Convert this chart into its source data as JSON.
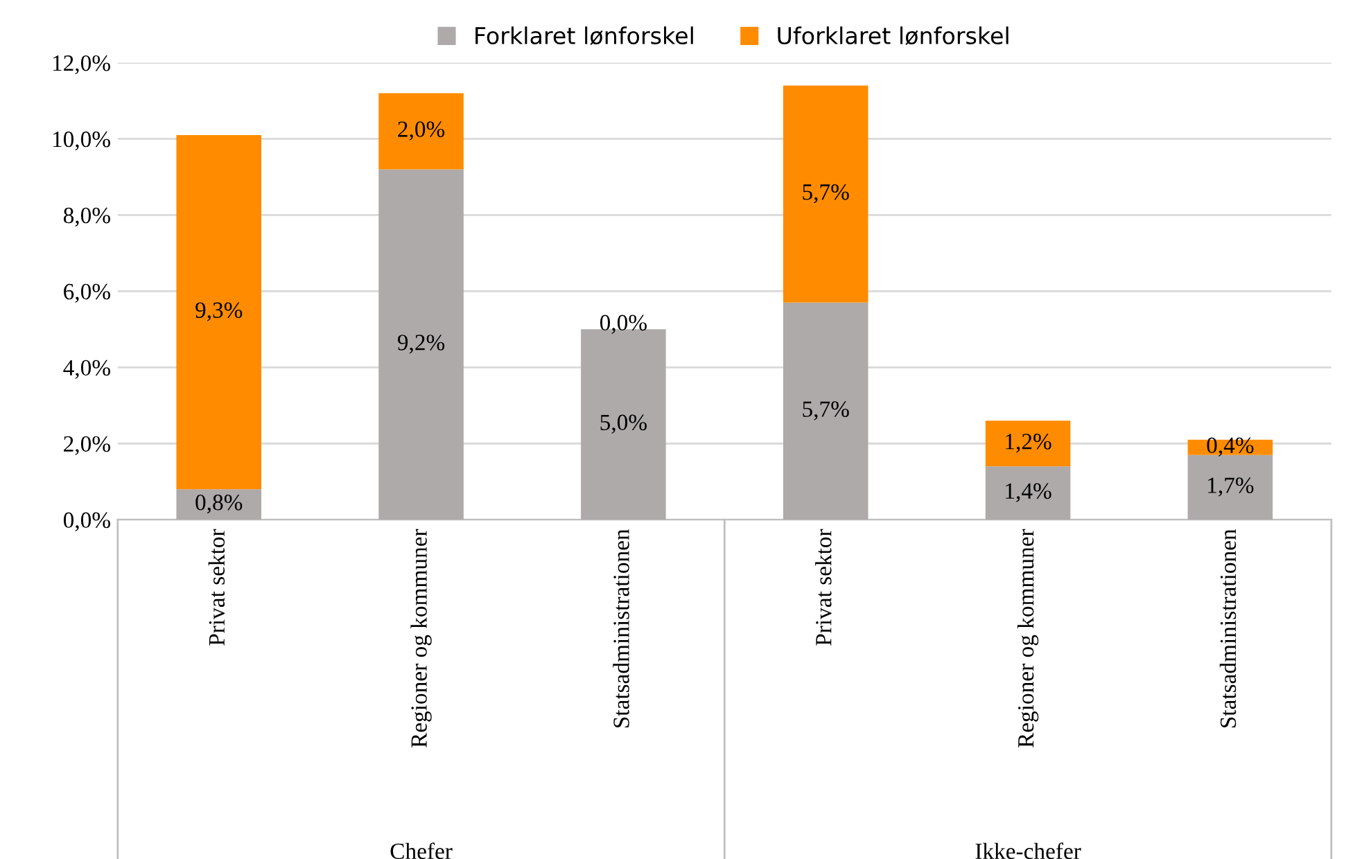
{
  "chart_data": {
    "type": "bar",
    "stacked": true,
    "categories": [
      "Privat sektor",
      "Regioner og kommuner",
      "Statsadministrationen",
      "Privat sektor",
      "Regioner og kommuner",
      "Statsadministrationen"
    ],
    "series": [
      {
        "name": "Forklaret lønforskel",
        "color": "#aeaaaa",
        "values": [
          0.8,
          9.2,
          5.0,
          5.7,
          1.4,
          1.7
        ],
        "value_labels": [
          "0,8%",
          "9,2%",
          "5,0%",
          "5,7%",
          "1,4%",
          "1,7%"
        ]
      },
      {
        "name": "Uforklaret lønforskel",
        "color": "#ff8c00",
        "values": [
          9.3,
          2.0,
          0.0,
          5.7,
          1.2,
          0.4
        ],
        "value_labels": [
          "9,3%",
          "2,0%",
          "0,0%",
          "5,7%",
          "1,2%",
          "0,4%"
        ]
      }
    ],
    "ylim": [
      0,
      12
    ],
    "yticks": [
      {
        "value": 0,
        "label": "0,0%"
      },
      {
        "value": 2,
        "label": "2,0%"
      },
      {
        "value": 4,
        "label": "4,0%"
      },
      {
        "value": 6,
        "label": "6,0%"
      },
      {
        "value": 8,
        "label": "8,0%"
      },
      {
        "value": 10,
        "label": "10,0%"
      },
      {
        "value": 12,
        "label": "12,0%"
      }
    ],
    "grid": "y",
    "legend": "top",
    "annotations": [
      "Chefer",
      "Ikke-chefer"
    ]
  }
}
